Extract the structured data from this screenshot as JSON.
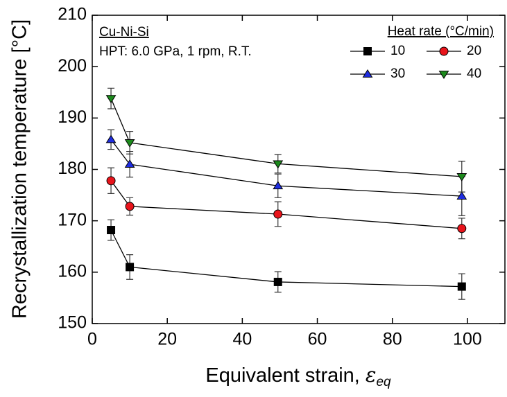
{
  "chart_data": {
    "type": "line",
    "annotations": [
      "Cu-Ni-Si",
      "HPT: 6.0 GPa, 1 rpm, R.T."
    ],
    "x_label": "Equivalent strain,",
    "x_label_symbol": "ε",
    "x_label_subscript": "eq",
    "y_label": "Recrystallization temperature [°C]",
    "legend_title": "Heat rate (°C/min)",
    "x": [
      5,
      10,
      49.5,
      98.5
    ],
    "series": [
      {
        "name": "10",
        "color": "#000000",
        "marker": "square",
        "values": [
          168.2,
          161.0,
          158.1,
          157.2
        ],
        "errors": [
          2.0,
          2.4,
          2.0,
          2.5
        ]
      },
      {
        "name": "20",
        "color": "#e8141b",
        "marker": "circle",
        "values": [
          177.8,
          172.8,
          171.3,
          168.5
        ],
        "errors": [
          2.5,
          1.7,
          2.4,
          2.0
        ]
      },
      {
        "name": "30",
        "color": "#1f2de0",
        "marker": "triangle-up",
        "values": [
          185.8,
          181.0,
          176.8,
          174.8
        ],
        "errors": [
          1.9,
          2.5,
          2.3,
          3.8
        ]
      },
      {
        "name": "40",
        "color": "#1c8a1c",
        "marker": "triangle-down",
        "values": [
          193.8,
          185.2,
          181.1,
          178.6
        ],
        "errors": [
          2.0,
          2.2,
          1.8,
          3.0
        ]
      }
    ],
    "xlim": [
      0,
      110
    ],
    "xticks": [
      0,
      20,
      40,
      60,
      80,
      100
    ],
    "ylim": [
      150,
      210
    ],
    "yticks": [
      150,
      160,
      170,
      180,
      190,
      200,
      210
    ]
  }
}
